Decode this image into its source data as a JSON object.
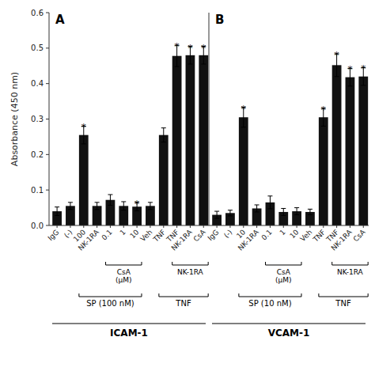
{
  "chart_data": [
    {
      "type": "bar",
      "title": "A",
      "ylabel": "Absorbance (450 nm)",
      "xlabel": "ICAM-1",
      "categories": [
        "IgG",
        "(-)",
        "100",
        "NK-1RA",
        "0.1",
        "1",
        "10",
        "Veh",
        "TNF",
        "TNF",
        "NK-1RA",
        "CsA"
      ],
      "values": [
        0.04,
        0.055,
        0.255,
        0.055,
        0.072,
        0.055,
        0.053,
        0.055,
        0.255,
        0.478,
        0.48,
        0.48
      ],
      "errors": [
        0.012,
        0.01,
        0.025,
        0.01,
        0.015,
        0.012,
        0.012,
        0.01,
        0.02,
        0.03,
        0.025,
        0.025
      ],
      "color": "#111111",
      "ylim": [
        0,
        0.6
      ],
      "yticks": [
        {
          "value": 0,
          "label": "0.0"
        },
        0.1,
        0.2,
        0.3,
        0.4,
        0.5,
        0.6
      ],
      "annotations": [
        {
          "text": "*",
          "index": 2
        },
        {
          "text": "*",
          "index": 6
        },
        {
          "text": "*",
          "index": 9
        },
        {
          "text": "*",
          "index": 10
        },
        {
          "text": "*",
          "index": 11
        }
      ],
      "brackets": [
        [
          {
            "text": "CsA\n(μM)",
            "start": 4,
            "end": 6
          },
          {
            "text": "NK-1RA",
            "start": 9,
            "end": 11
          }
        ],
        [
          {
            "text": "SP (100 nM)",
            "start": 2,
            "end": 6
          },
          {
            "text": "TNF",
            "start": 8,
            "end": 11
          }
        ]
      ]
    },
    {
      "type": "bar",
      "title": "B",
      "xlabel": "VCAM-1",
      "categories": [
        "IgG",
        "(-)",
        "10",
        "NK-1RA",
        "0.1",
        "1",
        "10",
        "Veh",
        "TNF",
        "TNF",
        "NK-1RA",
        "CsA"
      ],
      "values": [
        0.03,
        0.035,
        0.305,
        0.048,
        0.065,
        0.038,
        0.04,
        0.038,
        0.305,
        0.452,
        0.418,
        0.42
      ],
      "errors": [
        0.01,
        0.008,
        0.028,
        0.01,
        0.018,
        0.01,
        0.01,
        0.008,
        0.025,
        0.032,
        0.025,
        0.025
      ],
      "color": "#111111",
      "ylim": [
        0,
        0.6
      ],
      "tick_labels": "x",
      "annotations": [
        {
          "text": "*",
          "index": 2
        },
        {
          "text": "*",
          "index": 8
        },
        {
          "text": "*",
          "index": 9
        },
        {
          "text": "*",
          "index": 10
        },
        {
          "text": "*",
          "index": 11
        }
      ],
      "brackets": [
        [
          {
            "text": "CsA\n(μM)",
            "start": 4,
            "end": 6
          },
          {
            "text": "NK-1RA",
            "start": 9,
            "end": 11
          }
        ],
        [
          {
            "text": "SP (10 nM)",
            "start": 2,
            "end": 6
          },
          {
            "text": "TNF",
            "start": 8,
            "end": 11
          }
        ]
      ]
    }
  ]
}
